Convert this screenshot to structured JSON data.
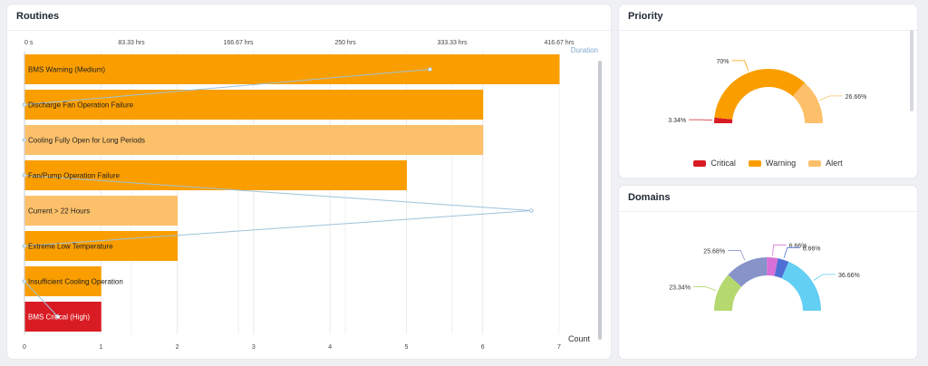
{
  "routines": {
    "title": "Routines",
    "duration_label": "Duration",
    "count_label": "Count",
    "chart_data": {
      "type": "bar",
      "orientation": "horizontal",
      "categories": [
        "BMS Warning (Medium)",
        "Discharge Fan Operation Failure",
        "Cooling Fully Open for Long Periods",
        "Fan/Pump Operation Failure",
        "Current > 22 Hours",
        "Extreme Low Temperature",
        "Insufficient Cooling Operation",
        "BMS Critical (High)"
      ],
      "series": [
        {
          "values": [
            7,
            6,
            6,
            5,
            2,
            2,
            1,
            1
          ],
          "priority": [
            "Warning",
            "Warning",
            "Alert",
            "Warning",
            "Alert",
            "Warning",
            "Warning",
            "Critical"
          ]
        },
        {
          "type": "line",
          "values": [
            316,
            0,
            0,
            0,
            395,
            0,
            0,
            26
          ]
        }
      ],
      "xlim": [
        0,
        7
      ],
      "x_ticks": [
        "0",
        "1",
        "2",
        "3",
        "4",
        "5",
        "6",
        "7"
      ],
      "x2lim": [
        0,
        416.67
      ],
      "x2_ticks": [
        "0 s",
        "83.33 hrs",
        "166.67 hrs",
        "250 hrs",
        "333.33 hrs",
        "416.67 hrs"
      ],
      "colors": {
        "Warning": "#fa9e00",
        "Alert": "#fdc06a",
        "Critical": "#d91c23",
        "line": "#9ec2d9"
      }
    }
  },
  "priority": {
    "title": "Priority",
    "chart_data": {
      "type": "pie",
      "variant": "half-donut",
      "labels": [
        "Critical",
        "Warning",
        "Alert"
      ],
      "values": [
        3.34,
        70,
        26.66
      ],
      "value_labels": [
        "3.34%",
        "70%",
        "26.66%"
      ],
      "colors": [
        "#d91c23",
        "#fa9e00",
        "#fdc06a"
      ],
      "legend": "bottom"
    }
  },
  "domains": {
    "title": "Domains",
    "chart_data": {
      "type": "pie",
      "variant": "half-donut",
      "values": [
        23.34,
        25.68,
        6.66,
        6.66,
        36.66
      ],
      "value_labels": [
        "23.34%",
        "25.68%",
        "6.66%",
        "6.66%",
        "36.66%"
      ],
      "colors": [
        "#b5d86f",
        "#8793c9",
        "#d86fd6",
        "#4f6fd6",
        "#63cff2"
      ]
    }
  }
}
